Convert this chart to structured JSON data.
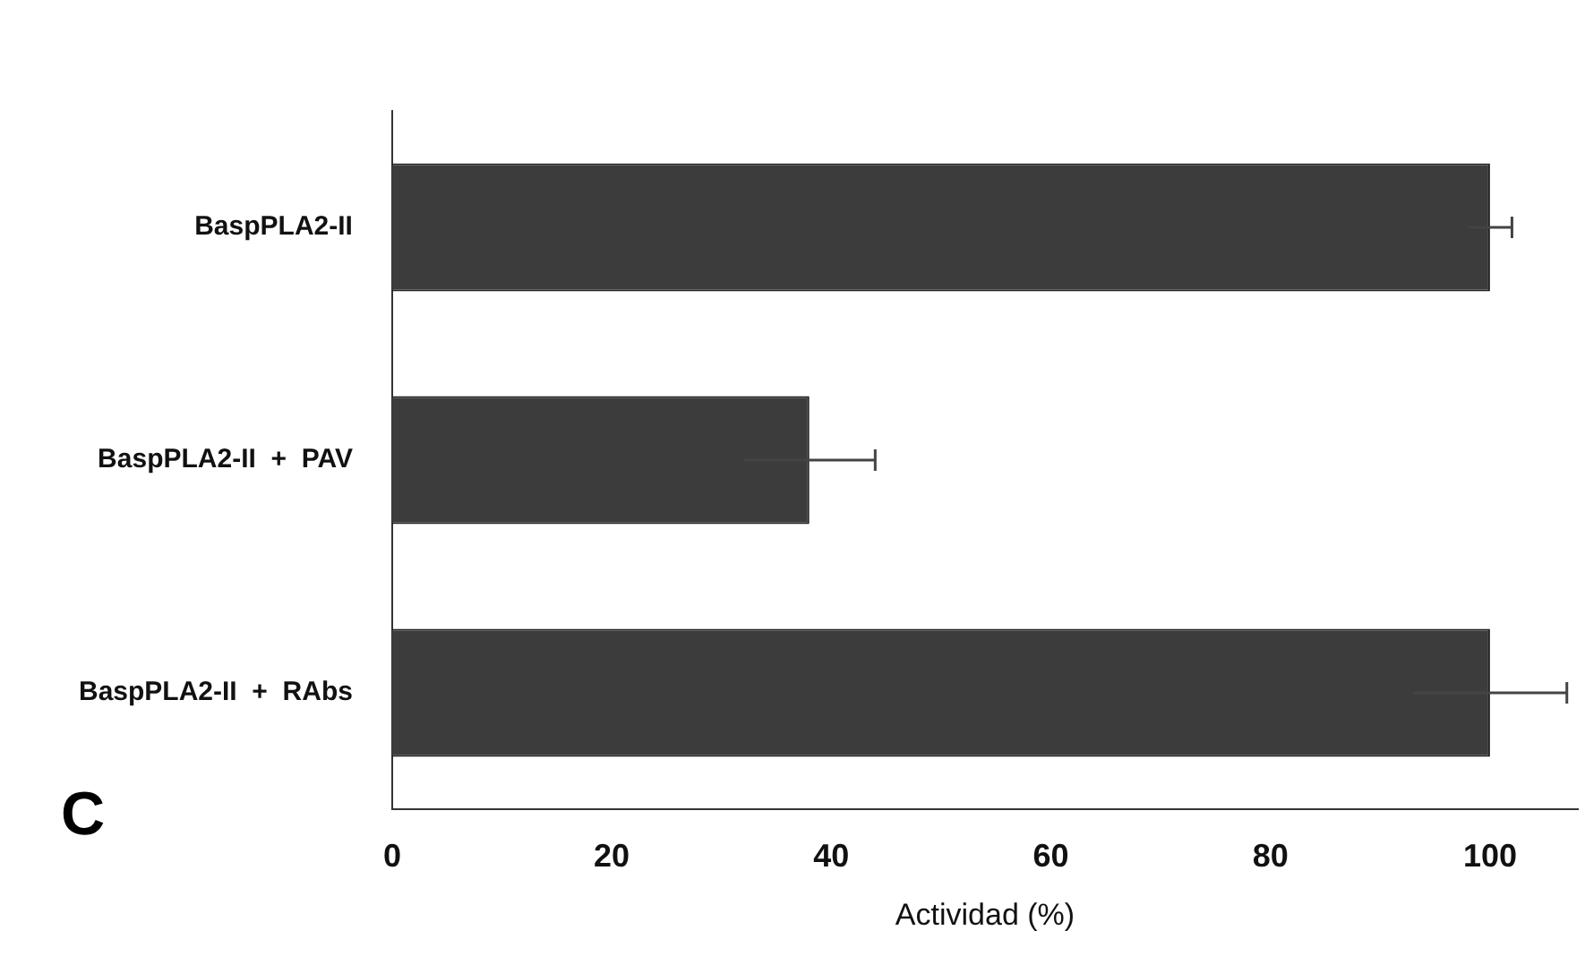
{
  "chart_data": {
    "type": "bar",
    "orientation": "horizontal",
    "xlabel": "Actividad (%)",
    "categories": [
      "BaspPLA2-II",
      "BaspPLA2-II  +  PAV",
      "BaspPLA2-II  +  RAbs"
    ],
    "values": [
      100,
      38,
      100
    ],
    "errors": [
      2,
      6,
      7
    ],
    "color": "#3c3c3c",
    "xlim": [
      0,
      108
    ],
    "xticks": [
      0,
      20,
      40,
      60,
      80,
      100
    ],
    "grid": false,
    "legend": false,
    "annotations": [
      "C"
    ]
  }
}
